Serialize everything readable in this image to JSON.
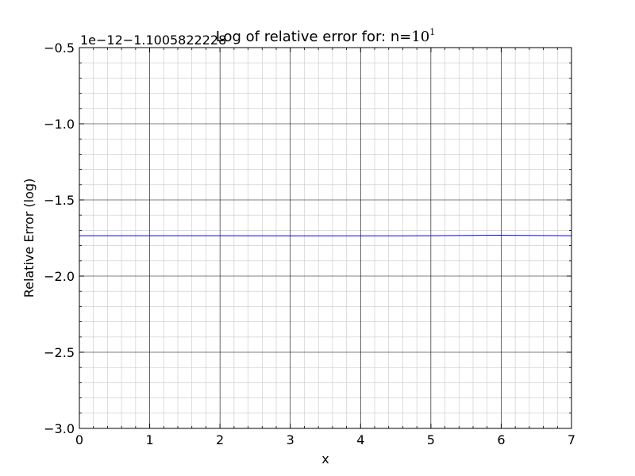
{
  "chart_data": {
    "type": "line",
    "title": "Log of relative error for: n=",
    "title_math_base": "10",
    "title_math_exp": "1",
    "xlabel": "x",
    "ylabel": "Relative Error (log)",
    "offset_text": "1e−12−1.1005822228",
    "xlim": [
      0,
      7
    ],
    "ylim": [
      -3.0,
      -0.5
    ],
    "x_ticks": [
      0,
      1,
      2,
      3,
      4,
      5,
      6,
      7
    ],
    "x_tick_labels": [
      "0",
      "1",
      "2",
      "3",
      "4",
      "5",
      "6",
      "7"
    ],
    "y_ticks": [
      -0.5,
      -1.0,
      -1.5,
      -2.0,
      -2.5,
      -3.0
    ],
    "y_tick_labels": [
      "−0.5",
      "−1.0",
      "−1.5",
      "−2.0",
      "−2.5",
      "−3.0"
    ],
    "grid": true,
    "minor_grid": true,
    "line_color": "#0000ff",
    "series": [
      {
        "x": [
          0,
          1,
          2,
          3,
          4,
          5,
          6,
          7
        ],
        "values": [
          -1.735,
          -1.735,
          -1.735,
          -1.736,
          -1.736,
          -1.735,
          -1.732,
          -1.735
        ]
      }
    ]
  }
}
